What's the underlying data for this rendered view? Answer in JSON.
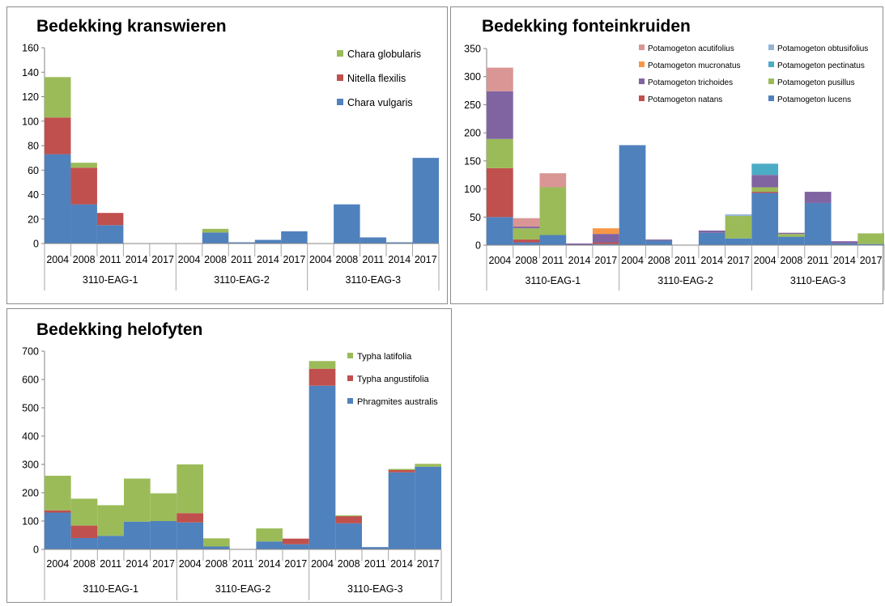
{
  "chart_data": [
    {
      "type": "bar",
      "stacked": true,
      "title": "Bedekking kranswieren",
      "ylim": [
        0,
        160
      ],
      "yticks": [
        0,
        20,
        40,
        60,
        80,
        100,
        120,
        140,
        160
      ],
      "groups": [
        "3110-EAG-1",
        "3110-EAG-2",
        "3110-EAG-3"
      ],
      "categories": [
        "2004",
        "2008",
        "2011",
        "2014",
        "2017",
        "2004",
        "2008",
        "2011",
        "2014",
        "2017",
        "2004",
        "2008",
        "2011",
        "2014",
        "2017"
      ],
      "legend_position": "top-right",
      "series": [
        {
          "name": "Chara vulgaris",
          "color": "#4f81bd",
          "values": [
            73,
            32,
            15,
            0,
            0,
            0,
            9,
            1,
            3,
            10,
            0,
            32,
            5,
            1,
            70
          ]
        },
        {
          "name": "Nitella flexilis",
          "color": "#c0504d",
          "values": [
            30,
            30,
            10,
            0,
            0,
            0,
            0,
            0,
            0,
            0,
            0,
            0,
            0,
            0,
            0
          ]
        },
        {
          "name": "Chara globularis",
          "color": "#9bbb59",
          "values": [
            33,
            4,
            0,
            0,
            0,
            0,
            3,
            0,
            0,
            0,
            0,
            0,
            0,
            0,
            0
          ]
        }
      ]
    },
    {
      "type": "bar",
      "stacked": true,
      "title": "Bedekking fonteinkruiden",
      "ylim": [
        0,
        350
      ],
      "yticks": [
        0,
        50,
        100,
        150,
        200,
        250,
        300,
        350
      ],
      "groups": [
        "3110-EAG-1",
        "3110-EAG-2",
        "3110-EAG-3"
      ],
      "categories": [
        "2004",
        "2008",
        "2011",
        "2014",
        "2017",
        "2004",
        "2008",
        "2011",
        "2014",
        "2017",
        "2004",
        "2008",
        "2011",
        "2014",
        "2017"
      ],
      "legend_position": "top-right",
      "series": [
        {
          "name": "Potamogeton lucens",
          "color": "#4f81bd",
          "values": [
            50,
            5,
            18,
            0,
            2,
            178,
            8,
            0,
            22,
            12,
            93,
            15,
            75,
            3,
            2
          ]
        },
        {
          "name": "Potamogeton natans",
          "color": "#c0504d",
          "values": [
            87,
            5,
            0,
            0,
            3,
            0,
            0,
            0,
            0,
            0,
            2,
            0,
            0,
            0,
            0
          ]
        },
        {
          "name": "Potamogeton pusillus",
          "color": "#9bbb59",
          "values": [
            52,
            20,
            85,
            0,
            0,
            0,
            0,
            0,
            0,
            40,
            8,
            5,
            0,
            0,
            19
          ]
        },
        {
          "name": "Potamogeton trichoides",
          "color": "#8064a2",
          "values": [
            85,
            3,
            0,
            3,
            15,
            0,
            2,
            0,
            4,
            0,
            22,
            2,
            20,
            4,
            0
          ]
        },
        {
          "name": "Potamogeton pectinatus",
          "color": "#4bacc6",
          "values": [
            0,
            0,
            0,
            0,
            0,
            0,
            0,
            0,
            0,
            0,
            20,
            0,
            0,
            0,
            0
          ]
        },
        {
          "name": "Potamogeton mucronatus",
          "color": "#f79646",
          "values": [
            0,
            0,
            0,
            0,
            10,
            0,
            0,
            0,
            0,
            0,
            0,
            0,
            0,
            0,
            0
          ]
        },
        {
          "name": "Potamogeton obtusifolius",
          "color": "#95b3d7",
          "values": [
            0,
            0,
            0,
            0,
            0,
            0,
            0,
            0,
            0,
            3,
            0,
            0,
            0,
            0,
            0
          ]
        },
        {
          "name": "Potamogeton acutifolius",
          "color": "#d99694",
          "values": [
            42,
            15,
            25,
            0,
            0,
            0,
            0,
            0,
            0,
            0,
            0,
            0,
            0,
            0,
            0
          ]
        }
      ]
    },
    {
      "type": "bar",
      "stacked": true,
      "title": "Bedekking helofyten",
      "ylim": [
        0,
        700
      ],
      "yticks": [
        0,
        100,
        200,
        300,
        400,
        500,
        600,
        700
      ],
      "groups": [
        "3110-EAG-1",
        "3110-EAG-2",
        "3110-EAG-3"
      ],
      "categories": [
        "2004",
        "2008",
        "2011",
        "2014",
        "2017",
        "2004",
        "2008",
        "2011",
        "2014",
        "2017",
        "2004",
        "2008",
        "2011",
        "2014",
        "2017"
      ],
      "legend_position": "top-right",
      "series": [
        {
          "name": "Phragmites australis",
          "color": "#4f81bd",
          "values": [
            130,
            40,
            48,
            98,
            100,
            95,
            10,
            1,
            28,
            18,
            578,
            92,
            8,
            272,
            292
          ]
        },
        {
          "name": "Typha angustifolia",
          "color": "#c0504d",
          "values": [
            8,
            44,
            0,
            0,
            0,
            33,
            0,
            0,
            0,
            20,
            60,
            25,
            0,
            8,
            0
          ]
        },
        {
          "name": "Typha latifolia",
          "color": "#9bbb59",
          "values": [
            122,
            95,
            108,
            152,
            98,
            172,
            29,
            0,
            46,
            0,
            27,
            3,
            0,
            4,
            10
          ]
        }
      ]
    }
  ]
}
